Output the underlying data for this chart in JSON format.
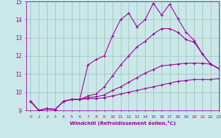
{
  "xlabel": "Windchill (Refroidissement éolien,°C)",
  "background_color": "#cbe8e8",
  "line_color": "#990099",
  "grid_color": "#99bbbb",
  "xlim": [
    -0.5,
    23
  ],
  "ylim": [
    9,
    15
  ],
  "xticks": [
    0,
    1,
    2,
    3,
    4,
    5,
    6,
    7,
    8,
    9,
    10,
    11,
    12,
    13,
    14,
    15,
    16,
    17,
    18,
    19,
    20,
    21,
    22,
    23
  ],
  "yticks": [
    9,
    10,
    11,
    12,
    13,
    14,
    15
  ],
  "curves": [
    {
      "x": [
        0,
        1,
        2,
        3,
        4,
        5,
        6,
        7,
        8,
        9,
        10,
        11,
        12,
        13,
        14,
        15,
        16,
        17,
        18,
        19,
        20,
        21,
        22,
        23
      ],
      "y": [
        9.5,
        9.0,
        9.1,
        9.05,
        9.5,
        9.6,
        9.6,
        11.5,
        11.8,
        12.0,
        13.1,
        14.0,
        14.35,
        13.6,
        14.0,
        14.9,
        14.25,
        14.85,
        14.05,
        13.3,
        12.85,
        12.1,
        11.55,
        11.3
      ]
    },
    {
      "x": [
        0,
        1,
        2,
        3,
        4,
        5,
        6,
        7,
        8,
        9,
        10,
        11,
        12,
        13,
        14,
        15,
        16,
        17,
        18,
        19,
        20,
        21,
        22,
        23
      ],
      "y": [
        9.5,
        9.0,
        9.1,
        9.05,
        9.5,
        9.6,
        9.6,
        9.8,
        9.9,
        10.3,
        10.9,
        11.5,
        12.0,
        12.5,
        12.8,
        13.2,
        13.5,
        13.5,
        13.3,
        12.9,
        12.75,
        12.1,
        11.55,
        11.3
      ]
    },
    {
      "x": [
        0,
        1,
        2,
        3,
        4,
        5,
        6,
        7,
        8,
        9,
        10,
        11,
        12,
        13,
        14,
        15,
        16,
        17,
        18,
        19,
        20,
        21,
        22,
        23
      ],
      "y": [
        9.5,
        9.0,
        9.1,
        9.05,
        9.5,
        9.6,
        9.6,
        9.7,
        9.75,
        9.85,
        10.1,
        10.3,
        10.55,
        10.8,
        11.05,
        11.25,
        11.45,
        11.5,
        11.55,
        11.6,
        11.6,
        11.6,
        11.55,
        11.3
      ]
    },
    {
      "x": [
        0,
        1,
        2,
        3,
        4,
        5,
        6,
        7,
        8,
        9,
        10,
        11,
        12,
        13,
        14,
        15,
        16,
        17,
        18,
        19,
        20,
        21,
        22,
        23
      ],
      "y": [
        9.5,
        9.0,
        9.1,
        9.05,
        9.5,
        9.6,
        9.6,
        9.65,
        9.65,
        9.7,
        9.8,
        9.9,
        10.0,
        10.1,
        10.2,
        10.3,
        10.4,
        10.5,
        10.6,
        10.65,
        10.7,
        10.7,
        10.7,
        10.75
      ]
    }
  ],
  "figsize": [
    3.2,
    2.0
  ],
  "dpi": 100
}
